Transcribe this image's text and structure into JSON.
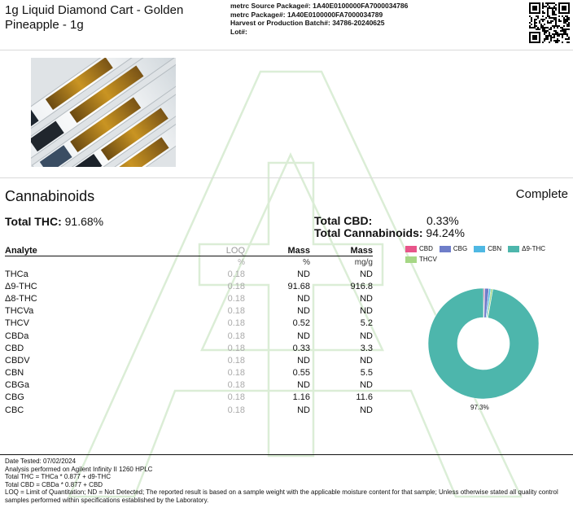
{
  "header": {
    "product_title": "1g Liquid Diamond Cart - Golden Pineapple - 1g",
    "meta": [
      {
        "label": "metrc Source Package#:",
        "value": "1A40E0100000FA7000034786"
      },
      {
        "label": "metrc Package#:",
        "value": "1A40E0100000FA7000034789"
      },
      {
        "label": "Harvest or Production Batch#:",
        "value": "34786-20240625"
      },
      {
        "label": "Lot#:",
        "value": ""
      }
    ]
  },
  "section": {
    "title": "Cannabinoids",
    "status": "Complete"
  },
  "totals": {
    "thc_label": "Total THC:",
    "thc_value": "91.68%",
    "cbd_label": "Total CBD:",
    "cbd_value": "0.33%",
    "cannabinoids_label": "Total Cannabinoids:",
    "cannabinoids_value": "94.24%"
  },
  "table": {
    "headers": [
      "Analyte",
      "LOQ",
      "Mass",
      "Mass"
    ],
    "units": [
      "",
      "%",
      "%",
      "mg/g"
    ],
    "rows": [
      [
        "THCa",
        "0.18",
        "ND",
        "ND"
      ],
      [
        "Δ9-THC",
        "0.18",
        "91.68",
        "916.8"
      ],
      [
        "Δ8-THC",
        "0.18",
        "ND",
        "ND"
      ],
      [
        "THCVa",
        "0.18",
        "ND",
        "ND"
      ],
      [
        "THCV",
        "0.18",
        "0.52",
        "5.2"
      ],
      [
        "CBDa",
        "0.18",
        "ND",
        "ND"
      ],
      [
        "CBD",
        "0.18",
        "0.33",
        "3.3"
      ],
      [
        "CBDV",
        "0.18",
        "ND",
        "ND"
      ],
      [
        "CBN",
        "0.18",
        "0.55",
        "5.5"
      ],
      [
        "CBGa",
        "0.18",
        "ND",
        "ND"
      ],
      [
        "CBG",
        "0.18",
        "1.16",
        "11.6"
      ],
      [
        "CBC",
        "0.18",
        "ND",
        "ND"
      ]
    ]
  },
  "chart_data": {
    "type": "pie",
    "donut": true,
    "legend_position": "top",
    "series": [
      {
        "name": "CBD",
        "value": 0.33,
        "color": "#e8558a"
      },
      {
        "name": "CBG",
        "value": 1.16,
        "color": "#6f7ec9"
      },
      {
        "name": "CBN",
        "value": 0.55,
        "color": "#4fb8e3"
      },
      {
        "name": "Δ9-THC",
        "value": 91.68,
        "color": "#4db6ac"
      },
      {
        "name": "THCV",
        "value": 0.52,
        "color": "#a6d785"
      }
    ],
    "data_labels": [
      "97.3%"
    ]
  },
  "footer": {
    "lines": [
      "Date Tested: 07/02/2024",
      "Analysis performed on Agilent Infinity II 1260 HPLC",
      "Total THC = THCa * 0.877 + d9-THC",
      "Total CBD = CBDa * 0.877 + CBD",
      "LOQ = Limit of Quantitation; ND = Not Detected; The reported result is based on a sample weight with the applicable moisture content for that sample; Unless otherwise stated all quality control samples performed within specifications established by the Laboratory."
    ]
  },
  "icons": {
    "qr": "qr-code-icon",
    "watermark": "lab-logo-watermark-icon",
    "photo": "product-cartridges-photo"
  }
}
